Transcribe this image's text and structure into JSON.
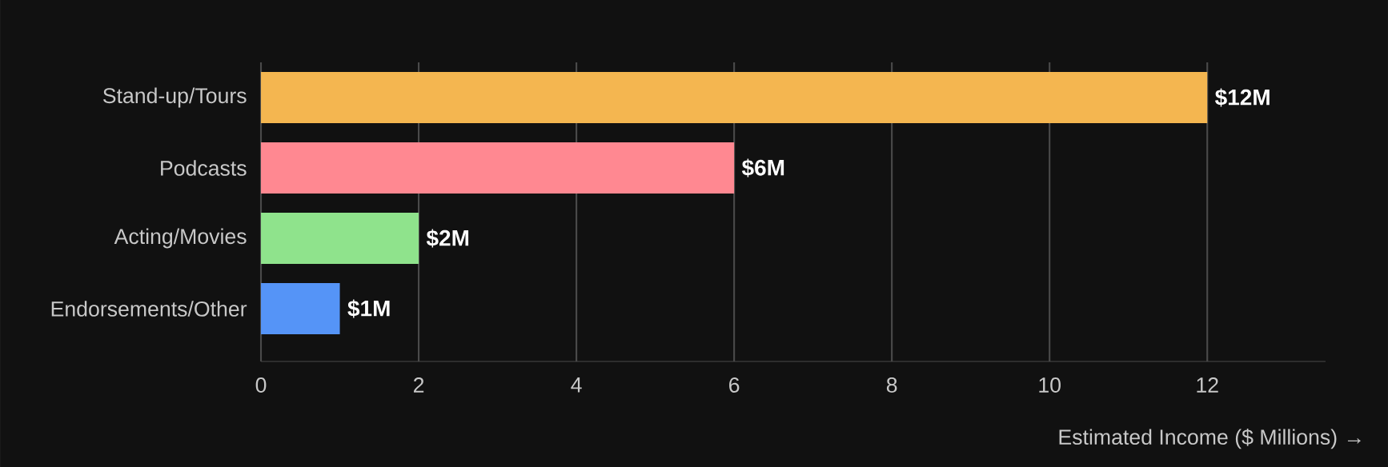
{
  "chart_data": {
    "type": "bar",
    "orientation": "horizontal",
    "categories": [
      "Stand-up/Tours",
      "Podcasts",
      "Acting/Movies",
      "Endorsements/Other"
    ],
    "values": [
      12,
      6,
      2,
      1
    ],
    "colors": [
      "#f4b650",
      "#ff8891",
      "#8fe38c",
      "#5594f7"
    ],
    "value_labels": [
      "$12M",
      "$6M",
      "$2M",
      "$1M"
    ],
    "xlabel": "Estimated Income ($ Millions) →",
    "xlim": [
      0,
      13.5
    ],
    "xticks": [
      0,
      2,
      4,
      6,
      8,
      10,
      12
    ],
    "grid": "x"
  }
}
